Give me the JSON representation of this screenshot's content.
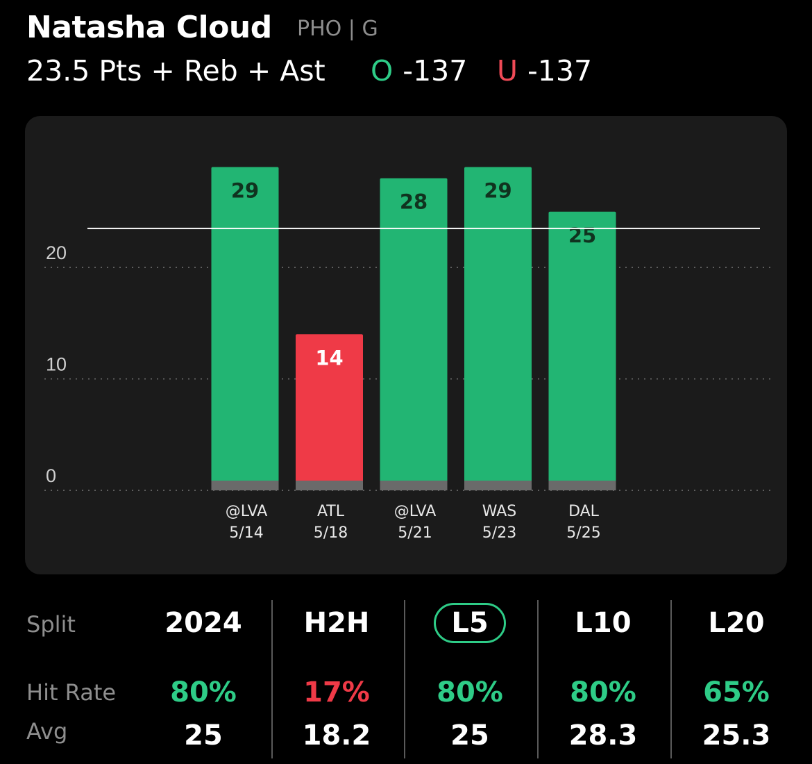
{
  "header": {
    "player_name": "Natasha Cloud",
    "player_meta": "PHO | G",
    "prop_line": "23.5 Pts + Reb + Ast",
    "over_letter": "O",
    "over_odds": "-137",
    "under_letter": "U",
    "under_odds": "-137"
  },
  "colors": {
    "over": "#22b573",
    "under": "#ef3a47",
    "accent": "#2ecc87",
    "muted": "#8e8e8e"
  },
  "chart_data": {
    "type": "bar",
    "categories": [
      "@LVA 5/14",
      "ATL 5/18",
      "@LVA 5/21",
      "WAS 5/23",
      "DAL 5/25"
    ],
    "opponents": [
      "@LVA",
      "ATL",
      "@LVA",
      "WAS",
      "DAL"
    ],
    "dates": [
      "5/14",
      "5/18",
      "5/21",
      "5/23",
      "5/25"
    ],
    "values": [
      29,
      14,
      28,
      29,
      25
    ],
    "data_labels": [
      "29",
      "14",
      "28",
      "29",
      "25"
    ],
    "results": [
      "over",
      "under",
      "over",
      "over",
      "over"
    ],
    "line": 23.5,
    "ylim": [
      0,
      31
    ],
    "yticks": [
      0,
      10,
      20
    ],
    "ytick_labels": [
      "0",
      "10",
      "20"
    ],
    "grid": true,
    "title": "",
    "xlabel": "",
    "ylabel": ""
  },
  "splits": {
    "row_labels": {
      "split": "Split",
      "hit_rate": "Hit Rate",
      "avg": "Avg"
    },
    "active": "L5",
    "columns": [
      {
        "label": "2024",
        "hit_rate": "80%",
        "hit_status": "over",
        "avg": "25"
      },
      {
        "label": "H2H",
        "hit_rate": "17%",
        "hit_status": "under",
        "avg": "18.2"
      },
      {
        "label": "L5",
        "hit_rate": "80%",
        "hit_status": "over",
        "avg": "25"
      },
      {
        "label": "L10",
        "hit_rate": "80%",
        "hit_status": "over",
        "avg": "28.3"
      },
      {
        "label": "L20",
        "hit_rate": "65%",
        "hit_status": "over",
        "avg": "25.3"
      }
    ]
  }
}
